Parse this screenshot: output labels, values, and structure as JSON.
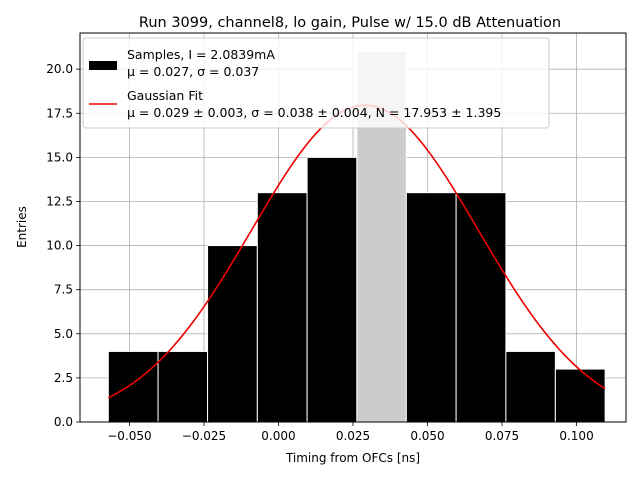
{
  "chart_data": {
    "type": "bar",
    "title": "Run 3099, channel8, lo gain, Pulse w/ 15.0 dB Attenuation",
    "xlabel": "Timing from OFCs [ns]",
    "ylabel": "Entries",
    "xlim": [
      -0.0666,
      0.1166
    ],
    "ylim": [
      0,
      22.05
    ],
    "grid": true,
    "x_ticks": [
      -0.05,
      -0.025,
      0.0,
      0.025,
      0.05,
      0.075,
      0.1
    ],
    "x_tick_labels": [
      "−0.050",
      "−0.025",
      "0.000",
      "0.025",
      "0.050",
      "0.075",
      "0.100"
    ],
    "y_ticks": [
      0,
      2.5,
      5,
      7.5,
      10,
      12.5,
      15,
      17.5,
      20
    ],
    "y_tick_labels": [
      "0.0",
      "2.5",
      "5.0",
      "7.5",
      "10.0",
      "12.5",
      "15.0",
      "17.5",
      "20.0"
    ],
    "bins": [
      {
        "x0": -0.0571,
        "x1": -0.0404,
        "value": 4,
        "color": "#000000"
      },
      {
        "x0": -0.0404,
        "x1": -0.0238,
        "value": 4,
        "color": "#000000"
      },
      {
        "x0": -0.0238,
        "x1": -0.0071,
        "value": 10,
        "color": "#000000"
      },
      {
        "x0": -0.0071,
        "x1": 0.0096,
        "value": 13,
        "color": "#000000"
      },
      {
        "x0": 0.0096,
        "x1": 0.0263,
        "value": 15,
        "color": "#000000"
      },
      {
        "x0": 0.0263,
        "x1": 0.0429,
        "value": 21,
        "color": "#cccccc"
      },
      {
        "x0": 0.0429,
        "x1": 0.0596,
        "value": 13,
        "color": "#000000"
      },
      {
        "x0": 0.0596,
        "x1": 0.0763,
        "value": 13,
        "color": "#000000"
      },
      {
        "x0": 0.0763,
        "x1": 0.0929,
        "value": 4,
        "color": "#000000"
      },
      {
        "x0": 0.0929,
        "x1": 0.1096,
        "value": 3,
        "color": "#000000"
      }
    ],
    "fit": {
      "name": "Gaussian Fit",
      "mu": 0.029,
      "sigma": 0.038,
      "N": 17.953,
      "x_range": [
        -0.0571,
        0.1096
      ],
      "color": "#ee0000"
    },
    "legend": {
      "placement": "top-left",
      "samples_line1": "Samples, I = 2.0839mA",
      "samples_line2": "μ = 0.027, σ = 0.037",
      "fit_line1": "Gaussian Fit",
      "fit_line2": "μ = 0.029 ± 0.003, σ = 0.038 ± 0.004, N = 17.953 ± 1.395"
    }
  }
}
